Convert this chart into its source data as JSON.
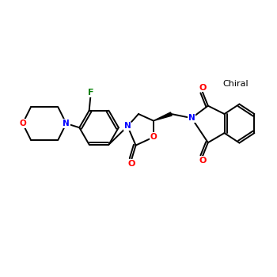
{
  "background_color": "#ffffff",
  "bond_color": "#000000",
  "atom_colors": {
    "N": "#0000ff",
    "O": "#ff0000",
    "F": "#008000",
    "C": "#000000"
  },
  "chiral_text": "Chiral",
  "chiral_fontsize": 8,
  "figsize": [
    3.5,
    3.5
  ],
  "dpi": 100
}
